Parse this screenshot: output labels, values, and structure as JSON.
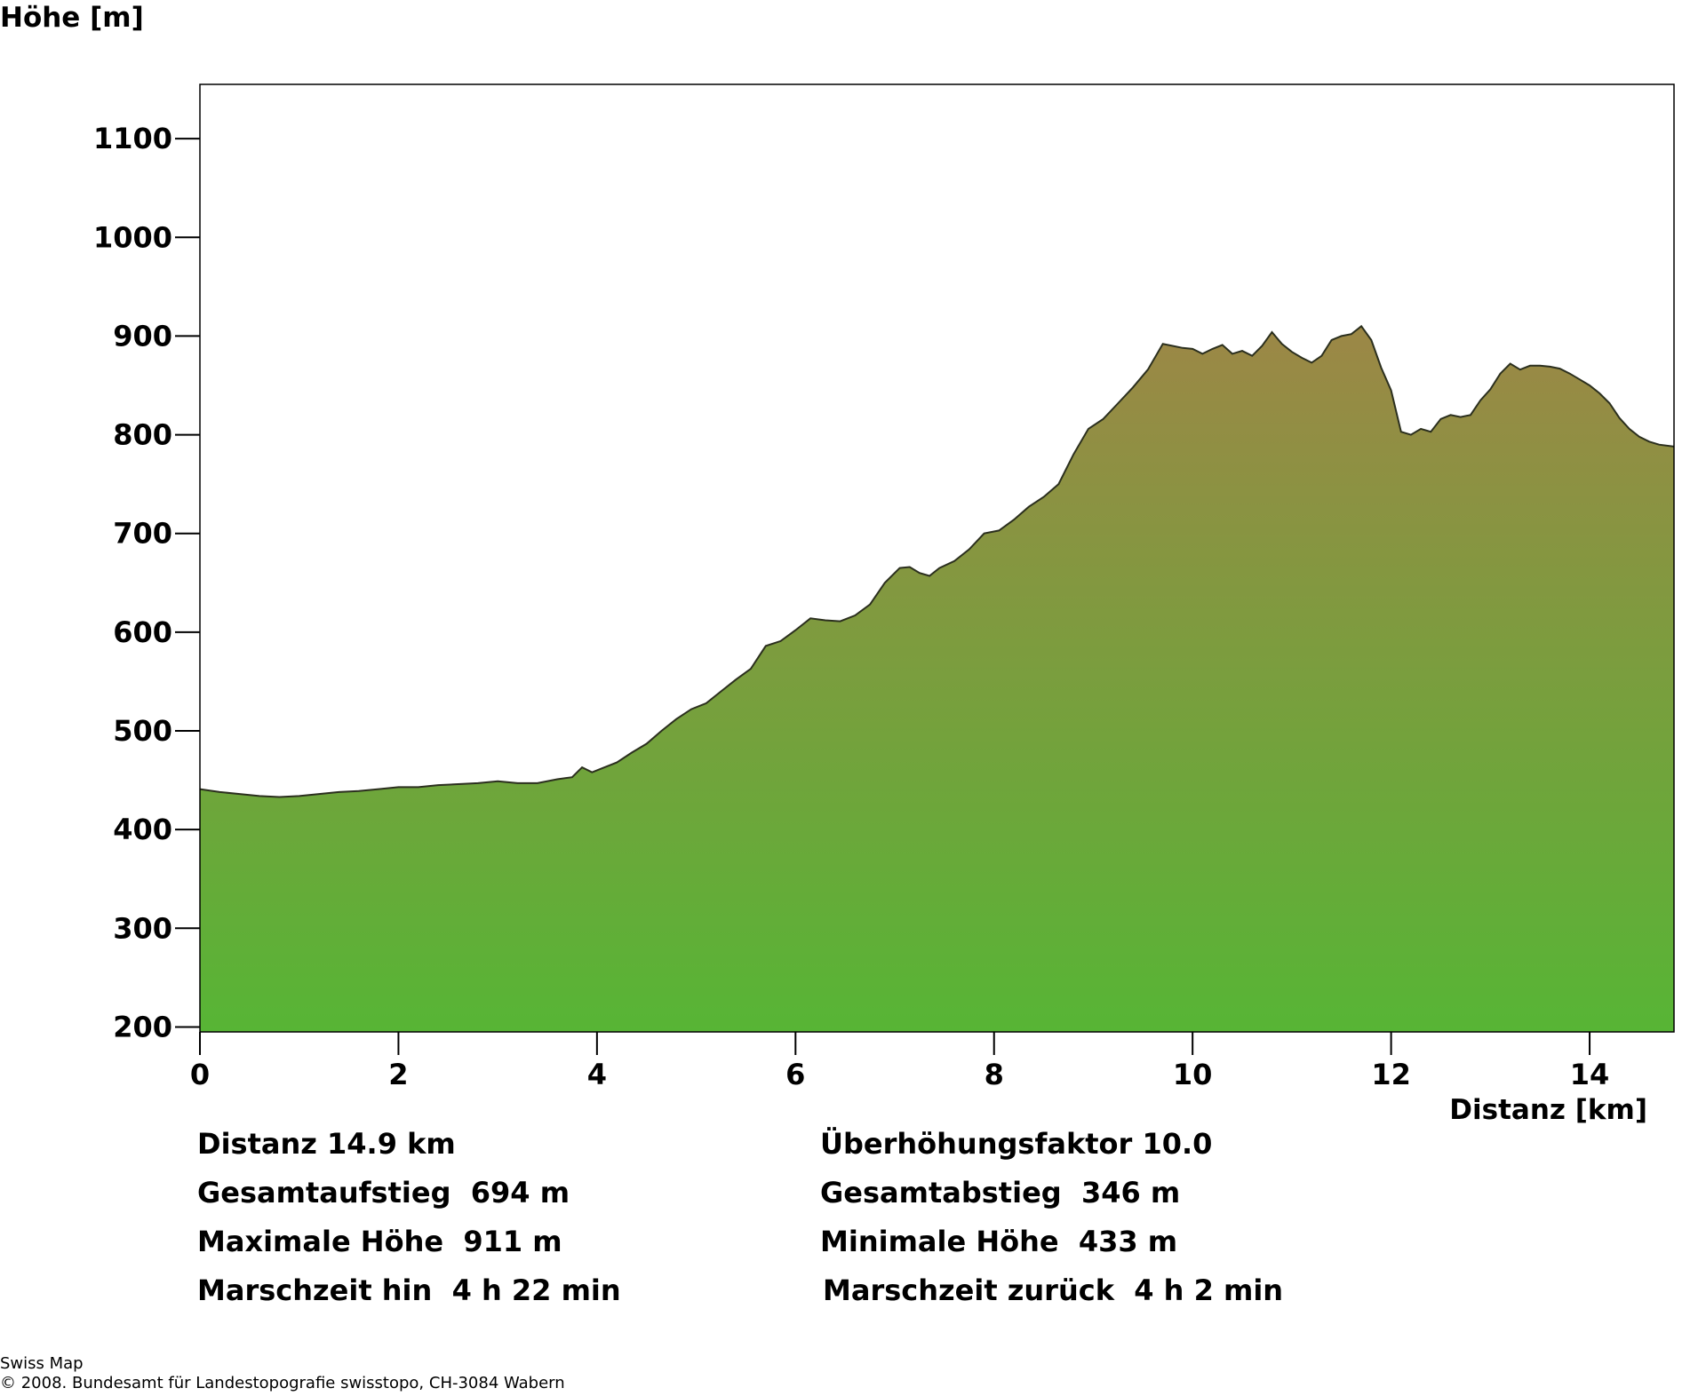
{
  "chart_data": {
    "type": "area",
    "ylabel": "Höhe [m]",
    "xlabel": "Distanz [km]",
    "xlim": [
      0,
      14.85
    ],
    "ylim": [
      195,
      1155
    ],
    "x_ticks": [
      0,
      2,
      4,
      6,
      8,
      10,
      12,
      14
    ],
    "y_ticks": [
      200,
      300,
      400,
      500,
      600,
      700,
      800,
      900,
      1000,
      1100
    ],
    "grid": false,
    "legend": "none",
    "fill_gradient": {
      "top": "#9c8746",
      "bottom": "#57b535"
    },
    "outline_color": "#2b2f1e",
    "series": [
      {
        "x": [
          0,
          0.2,
          0.4,
          0.6,
          0.8,
          1.0,
          1.2,
          1.4,
          1.6,
          1.8,
          2.0,
          2.2,
          2.4,
          2.6,
          2.8,
          3.0,
          3.2,
          3.4,
          3.6,
          3.75,
          3.85,
          3.95,
          4.05,
          4.2,
          4.35,
          4.5,
          4.65,
          4.8,
          4.95,
          5.1,
          5.25,
          5.4,
          5.55,
          5.7,
          5.85,
          6.0,
          6.15,
          6.3,
          6.45,
          6.6,
          6.75,
          6.9,
          7.05,
          7.15,
          7.25,
          7.35,
          7.45,
          7.6,
          7.75,
          7.9,
          8.05,
          8.2,
          8.35,
          8.5,
          8.65,
          8.8,
          8.95,
          9.1,
          9.25,
          9.4,
          9.55,
          9.7,
          9.8,
          9.9,
          10.0,
          10.1,
          10.2,
          10.3,
          10.4,
          10.5,
          10.6,
          10.7,
          10.8,
          10.9,
          11.0,
          11.1,
          11.2,
          11.3,
          11.4,
          11.5,
          11.6,
          11.7,
          11.8,
          11.9,
          12.0,
          12.1,
          12.2,
          12.3,
          12.4,
          12.5,
          12.6,
          12.7,
          12.8,
          12.9,
          13.0,
          13.1,
          13.2,
          13.3,
          13.4,
          13.5,
          13.6,
          13.7,
          13.8,
          13.9,
          14.0,
          14.1,
          14.2,
          14.3,
          14.4,
          14.5,
          14.6,
          14.7,
          14.85
        ],
        "y": [
          441,
          438,
          436,
          434,
          433,
          434,
          436,
          438,
          439,
          441,
          443,
          443,
          445,
          446,
          447,
          449,
          447,
          447,
          451,
          453,
          463,
          458,
          462,
          468,
          478,
          487,
          500,
          512,
          522,
          528,
          540,
          552,
          563,
          586,
          591,
          602,
          614,
          612,
          611,
          617,
          628,
          650,
          665,
          666,
          660,
          657,
          665,
          672,
          684,
          700,
          703,
          714,
          727,
          737,
          750,
          780,
          806,
          816,
          832,
          848,
          866,
          892,
          890,
          888,
          887,
          882,
          887,
          891,
          882,
          885,
          880,
          890,
          904,
          892,
          884,
          878,
          873,
          880,
          896,
          900,
          902,
          910,
          896,
          868,
          845,
          803,
          800,
          806,
          803,
          816,
          820,
          818,
          820,
          835,
          846,
          862,
          872,
          866,
          870,
          870,
          869,
          867,
          862,
          856,
          850,
          842,
          832,
          817,
          806,
          798,
          793,
          790,
          788
        ]
      }
    ]
  },
  "stats": {
    "distance": "Distanz 14.9 km",
    "exaggeration": "Überhöhungsfaktor 10.0",
    "ascent": "Gesamtaufstieg  694 m",
    "descent": "Gesamtabstieg  346 m",
    "max_height": "Maximale Höhe  911 m",
    "min_height": "Minimale Höhe  433 m",
    "time_there": "Marschzeit hin  4 h 22 min",
    "time_back": "Marschzeit zurück  4 h 2 min"
  },
  "footer": {
    "source": "Swiss Map",
    "copyright": "© 2008. Bundesamt für Landestopografie swisstopo, CH-3084 Wabern"
  }
}
